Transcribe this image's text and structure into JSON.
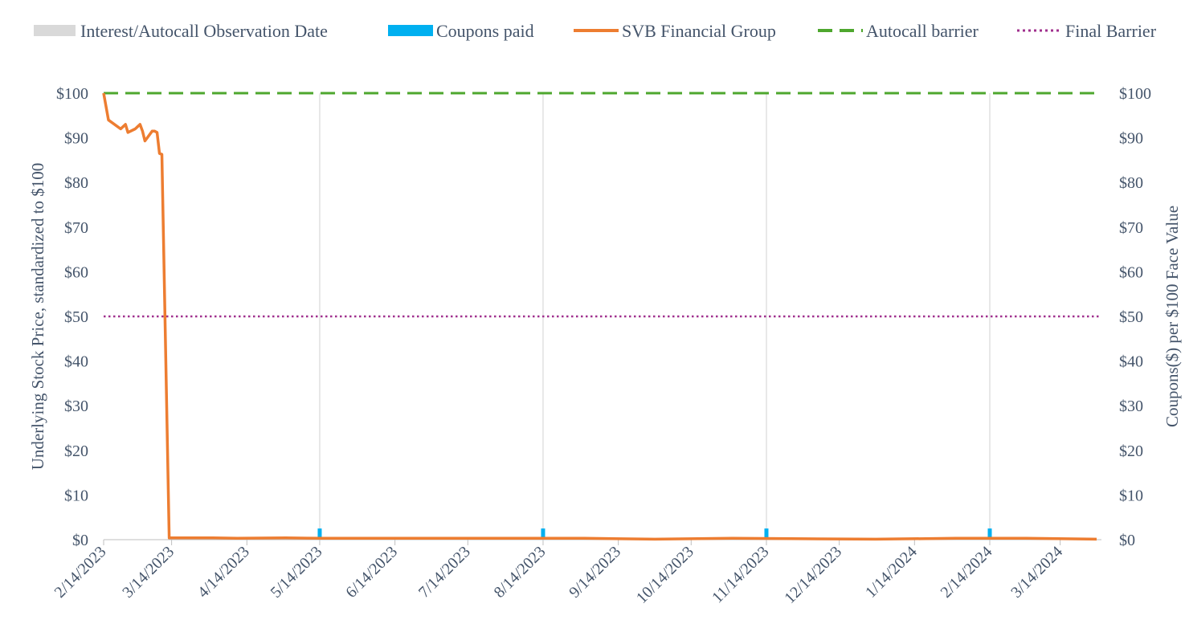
{
  "chart_data": {
    "type": "line",
    "legend": [
      {
        "label": "Interest/Autocall Observation Date",
        "swatch": "bar",
        "color": "#d9d9d9"
      },
      {
        "label": "Coupons paid",
        "swatch": "bar",
        "color": "#00b0f0"
      },
      {
        "label": "SVB Financial Group",
        "swatch": "line",
        "color": "#ed7d31"
      },
      {
        "label": "Autocall barrier",
        "swatch": "dashed",
        "color": "#4ea72e"
      },
      {
        "label": "Final Barrier",
        "swatch": "dotted",
        "color": "#a0308e"
      }
    ],
    "legend_position": "top",
    "ylabel_left": "Underlying Stock Price, standardized to $100",
    "ylabel_right": "Coupons($) per $100 Face Value",
    "ylim": [
      0,
      100
    ],
    "yticks": [
      "$0",
      "$10",
      "$20",
      "$30",
      "$40",
      "$50",
      "$60",
      "$70",
      "$80",
      "$90",
      "$100"
    ],
    "xlim": [
      "2023-02-14",
      "2024-03-31"
    ],
    "xticks": [
      {
        "date": "2023-02-14",
        "label": "2/14/2023"
      },
      {
        "date": "2023-03-14",
        "label": "3/14/2023"
      },
      {
        "date": "2023-04-14",
        "label": "4/14/2023"
      },
      {
        "date": "2023-05-14",
        "label": "5/14/2023"
      },
      {
        "date": "2023-06-14",
        "label": "6/14/2023"
      },
      {
        "date": "2023-07-14",
        "label": "7/14/2023"
      },
      {
        "date": "2023-08-14",
        "label": "8/14/2023"
      },
      {
        "date": "2023-09-14",
        "label": "9/14/2023"
      },
      {
        "date": "2023-10-14",
        "label": "10/14/2023"
      },
      {
        "date": "2023-11-14",
        "label": "11/14/2023"
      },
      {
        "date": "2023-12-14",
        "label": "12/14/2023"
      },
      {
        "date": "2024-01-14",
        "label": "1/14/2024"
      },
      {
        "date": "2024-02-14",
        "label": "2/14/2024"
      },
      {
        "date": "2024-03-14",
        "label": "3/14/2024"
      }
    ],
    "observation_dates": [
      "2023-05-14",
      "2023-08-14",
      "2023-11-14",
      "2024-02-14"
    ],
    "coupons_paid": [
      {
        "date": "2023-05-14",
        "value": 2.5
      },
      {
        "date": "2023-08-14",
        "value": 2.5
      },
      {
        "date": "2023-11-14",
        "value": 2.5
      },
      {
        "date": "2024-02-14",
        "value": 2.5
      }
    ],
    "autocall_barrier": 100,
    "final_barrier": 50,
    "grid": false,
    "series": [
      {
        "name": "SVB Financial Group",
        "color": "#ed7d31",
        "points": [
          [
            "2023-02-14",
            100
          ],
          [
            "2023-02-15",
            97
          ],
          [
            "2023-02-16",
            94
          ],
          [
            "2023-02-21",
            92
          ],
          [
            "2023-02-22",
            92.5
          ],
          [
            "2023-02-23",
            93
          ],
          [
            "2023-02-24",
            91.2
          ],
          [
            "2023-02-27",
            92
          ],
          [
            "2023-02-28",
            92.5
          ],
          [
            "2023-03-01",
            93
          ],
          [
            "2023-03-02",
            91.5
          ],
          [
            "2023-03-03",
            89.3
          ],
          [
            "2023-03-06",
            91.5
          ],
          [
            "2023-03-07",
            91.5
          ],
          [
            "2023-03-08",
            91.2
          ],
          [
            "2023-03-09",
            86.5
          ],
          [
            "2023-03-10",
            86.3
          ],
          [
            "2023-03-13",
            0.4
          ],
          [
            "2023-03-31",
            0.4
          ],
          [
            "2023-04-10",
            0.3
          ],
          [
            "2023-04-30",
            0.4
          ],
          [
            "2023-05-15",
            0.3
          ],
          [
            "2023-06-30",
            0.3
          ],
          [
            "2023-08-31",
            0.3
          ],
          [
            "2023-09-29",
            0.1
          ],
          [
            "2023-10-31",
            0.3
          ],
          [
            "2023-11-30",
            0.2
          ],
          [
            "2023-12-29",
            0.1
          ],
          [
            "2024-01-31",
            0.3
          ],
          [
            "2024-02-29",
            0.3
          ],
          [
            "2024-03-29",
            0.1
          ]
        ]
      }
    ]
  }
}
